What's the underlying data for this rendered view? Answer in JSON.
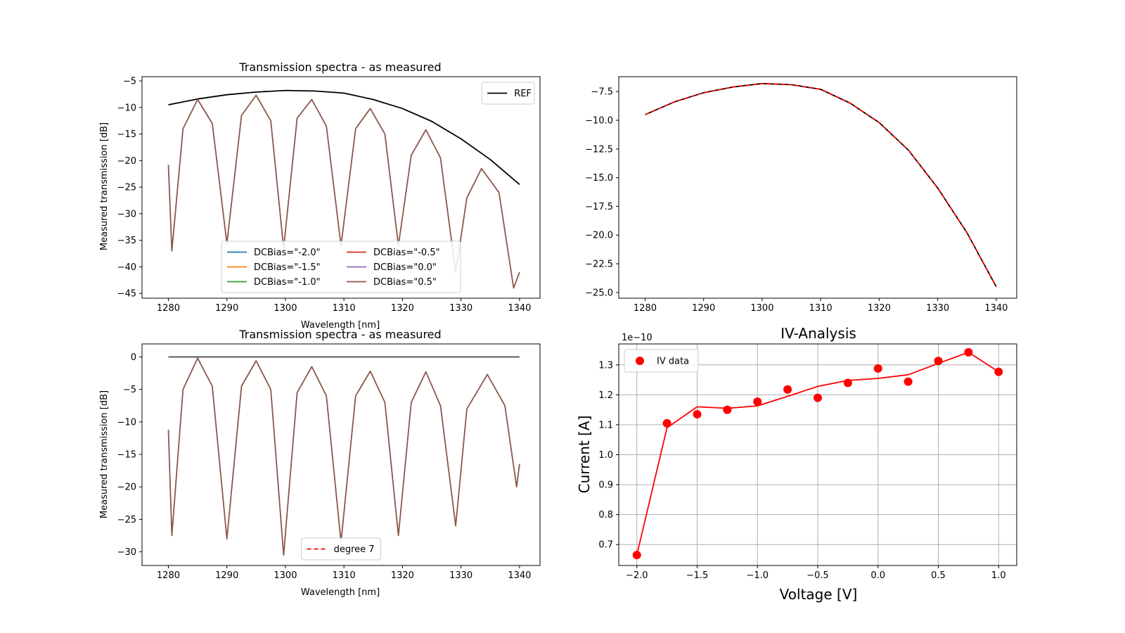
{
  "chart_data": [
    {
      "type": "line",
      "title": "Transmission spectra - as measured",
      "xlabel": "Wavelength [nm]",
      "ylabel": "Measured transmission [dB]",
      "xlim": [
        1275.5,
        1343.5
      ],
      "ylim": [
        -45.9,
        -4.2
      ],
      "xticks": [
        1280,
        1290,
        1300,
        1310,
        1320,
        1330,
        1340
      ],
      "yticks": [
        -5,
        -10,
        -15,
        -20,
        -25,
        -30,
        -35,
        -40,
        -45
      ],
      "grid": false,
      "legends": [
        {
          "placement": "upper right",
          "entries": [
            {
              "label": "REF",
              "color": "#000000",
              "style": "solid"
            }
          ]
        },
        {
          "placement": "lower center",
          "columns": 2,
          "entries": [
            {
              "label": "DCBias=\"-2.0\"",
              "color": "#1f77b4",
              "style": "solid"
            },
            {
              "label": "DCBias=\"-1.5\"",
              "color": "#ff7f0e",
              "style": "solid"
            },
            {
              "label": "DCBias=\"-1.0\"",
              "color": "#2ca02c",
              "style": "solid"
            },
            {
              "label": "DCBias=\"-0.5\"",
              "color": "#d62728",
              "style": "solid"
            },
            {
              "label": "DCBias=\"0.0\"",
              "color": "#9467bd",
              "style": "solid"
            },
            {
              "label": "DCBias=\"0.5\"",
              "color": "#8c564b",
              "style": "solid"
            }
          ]
        }
      ],
      "series": [
        {
          "name": "REF",
          "color": "#000000",
          "x": [
            1280,
            1285,
            1290,
            1295,
            1300,
            1305,
            1310,
            1315,
            1320,
            1325,
            1330,
            1335,
            1340
          ],
          "y": [
            -9.5,
            -8.4,
            -7.6,
            -7.1,
            -6.8,
            -6.9,
            -7.3,
            -8.5,
            -10.2,
            -12.6,
            -15.9,
            -19.8,
            -24.5
          ]
        },
        {
          "name": "DCBias=\"0.5\"",
          "color": "#8c564b",
          "overlapping_series": [
            "DCBias=\"-2.0\"",
            "DCBias=\"-1.5\"",
            "DCBias=\"-1.0\"",
            "DCBias=\"-0.5\"",
            "DCBias=\"0.0\""
          ],
          "x": [
            1280,
            1280.6,
            1282.5,
            1285,
            1287.5,
            1290,
            1292.5,
            1295,
            1297.5,
            1299.7,
            1302,
            1304.5,
            1307,
            1309.5,
            1312,
            1314.5,
            1317,
            1319.3,
            1321.5,
            1324,
            1326.5,
            1329.1,
            1331,
            1333.5,
            1336.5,
            1339,
            1340
          ],
          "y": [
            -20.8,
            -37.0,
            -14.0,
            -8.5,
            -13.0,
            -35.6,
            -11.5,
            -7.7,
            -12.5,
            -36.5,
            -12.0,
            -8.5,
            -13.5,
            -36.0,
            -14.0,
            -10.2,
            -15.0,
            -36.0,
            -19.0,
            -14.2,
            -19.5,
            -41.0,
            -27.0,
            -21.5,
            -26.0,
            -44.0,
            -41.0
          ]
        }
      ]
    },
    {
      "type": "line",
      "title": "",
      "xlabel": "",
      "ylabel": "",
      "xlim": [
        1275.5,
        1343.5
      ],
      "ylim": [
        -25.5,
        -6.2
      ],
      "xticks": [
        1280,
        1290,
        1300,
        1310,
        1320,
        1330,
        1340
      ],
      "yticks": [
        -7.5,
        -10.0,
        -12.5,
        -15.0,
        -17.5,
        -20.0,
        -22.5,
        -25.0
      ],
      "grid": false,
      "series": [
        {
          "color": "#000000",
          "x": [
            1280,
            1285,
            1290,
            1295,
            1300,
            1305,
            1310,
            1315,
            1320,
            1325,
            1330,
            1335,
            1340
          ],
          "y": [
            -9.5,
            -8.4,
            -7.6,
            -7.1,
            -6.8,
            -6.9,
            -7.3,
            -8.5,
            -10.2,
            -12.6,
            -15.9,
            -19.8,
            -24.5
          ]
        },
        {
          "color": "#ff0000",
          "style": "dashed",
          "x": [
            1280,
            1285,
            1290,
            1295,
            1300,
            1305,
            1310,
            1315,
            1320,
            1325,
            1330,
            1335,
            1340
          ],
          "y": [
            -9.5,
            -8.4,
            -7.6,
            -7.1,
            -6.8,
            -6.9,
            -7.3,
            -8.5,
            -10.2,
            -12.6,
            -15.9,
            -19.8,
            -24.5
          ]
        }
      ]
    },
    {
      "type": "line",
      "title": "Transmission spectra - as measured",
      "xlabel": "Wavelength [nm]",
      "ylabel": "Measured transmission [dB]",
      "xlim": [
        1275.5,
        1343.5
      ],
      "ylim": [
        -32.1,
        2.0
      ],
      "xticks": [
        1280,
        1290,
        1300,
        1310,
        1320,
        1330,
        1340
      ],
      "yticks": [
        0,
        -5,
        -10,
        -15,
        -20,
        -25,
        -30
      ],
      "grid": false,
      "legends": [
        {
          "placement": "lower center",
          "entries": [
            {
              "label": "degree 7",
              "color": "#ff0000",
              "style": "dashed"
            }
          ]
        }
      ],
      "series": [
        {
          "color": "#444444",
          "x": [
            1280,
            1290,
            1300,
            1310,
            1320,
            1330,
            1340
          ],
          "y": [
            0,
            0,
            0,
            0,
            0,
            0,
            0
          ]
        },
        {
          "color": "#8c564b",
          "x": [
            1280,
            1280.6,
            1282.5,
            1285,
            1287.5,
            1290,
            1292.5,
            1295,
            1297.5,
            1299.7,
            1302,
            1304.5,
            1307,
            1309.5,
            1312,
            1314.5,
            1317,
            1319.3,
            1321.5,
            1324,
            1326.5,
            1329.1,
            1331,
            1334.5,
            1337.5,
            1339.5,
            1340
          ],
          "y": [
            -11.2,
            -27.5,
            -5.0,
            -0.2,
            -4.5,
            -28.0,
            -4.5,
            -0.6,
            -5.0,
            -30.5,
            -5.5,
            -1.5,
            -6.0,
            -28.5,
            -6.0,
            -2.2,
            -7.0,
            -27.5,
            -7.0,
            -2.3,
            -7.5,
            -26.0,
            -8.0,
            -2.7,
            -7.5,
            -20.0,
            -16.5
          ]
        }
      ]
    },
    {
      "type": "scatter",
      "title": "IV-Analysis",
      "xlabel": "Voltage [V]",
      "ylabel": "Current [A]",
      "y_scale_label": "1e−10",
      "xlim": [
        -2.15,
        1.15
      ],
      "ylim": [
        0.63,
        1.37
      ],
      "xticks": [
        -2.0,
        -1.5,
        -1.0,
        -0.5,
        0.0,
        0.5,
        1.0
      ],
      "yticks": [
        0.7,
        0.8,
        0.9,
        1.0,
        1.1,
        1.2,
        1.3
      ],
      "grid": true,
      "legends": [
        {
          "placement": "upper left",
          "entries": [
            {
              "label": "IV data",
              "color": "#ff0000",
              "style": "marker"
            }
          ]
        }
      ],
      "series": [
        {
          "name": "IV data",
          "color": "#ff0000",
          "style": "marker",
          "x": [
            -2.0,
            -1.75,
            -1.5,
            -1.25,
            -1.0,
            -0.75,
            -0.5,
            -0.25,
            0.0,
            0.25,
            0.5,
            0.75,
            1.0
          ],
          "y": [
            0.665,
            1.105,
            1.135,
            1.15,
            1.177,
            1.218,
            1.19,
            1.24,
            1.288,
            1.244,
            1.313,
            1.342,
            1.277
          ]
        },
        {
          "color": "#ff0000",
          "style": "solid",
          "x": [
            -2.0,
            -1.75,
            -1.5,
            -1.25,
            -1.0,
            -0.75,
            -0.5,
            -0.25,
            0.0,
            0.25,
            0.5,
            0.75,
            1.0
          ],
          "y": [
            0.665,
            1.09,
            1.16,
            1.155,
            1.163,
            1.195,
            1.228,
            1.248,
            1.255,
            1.267,
            1.305,
            1.342,
            1.277
          ]
        }
      ]
    }
  ]
}
